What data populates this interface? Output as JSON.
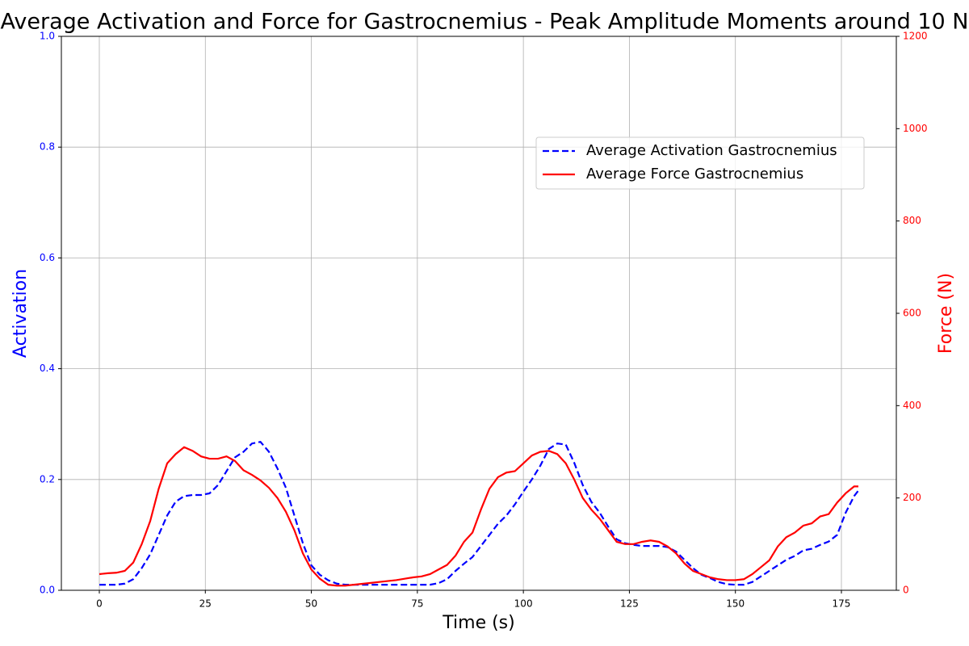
{
  "chart_data": {
    "type": "line",
    "title": "Average Activation and Force for Gastrocnemius - Peak Amplitude Moments around 10 N",
    "xlabel": "Time (s)",
    "ylabel": "Activation",
    "y2label": "Force (N)",
    "ylabel_color": "#0000ff",
    "y2label_color": "#ff0000",
    "x": [
      0,
      2,
      4,
      6,
      8,
      10,
      12,
      14,
      16,
      18,
      20,
      22,
      24,
      26,
      28,
      30,
      32,
      34,
      36,
      38,
      40,
      42,
      44,
      46,
      48,
      50,
      52,
      54,
      56,
      58,
      60,
      62,
      64,
      66,
      68,
      70,
      72,
      74,
      76,
      78,
      80,
      82,
      84,
      86,
      88,
      90,
      92,
      94,
      96,
      98,
      100,
      102,
      104,
      106,
      108,
      110,
      112,
      114,
      116,
      118,
      120,
      122,
      124,
      126,
      128,
      130,
      132,
      134,
      136,
      138,
      140,
      142,
      144,
      146,
      148,
      150,
      152,
      154,
      156,
      158,
      160,
      162,
      164,
      166,
      168,
      170,
      172,
      174,
      176,
      178,
      179
    ],
    "series": [
      {
        "name": "Average Activation Gastrocnemius",
        "color": "#0000ff",
        "linestyle": "dashed",
        "axis": "y",
        "values": [
          0.01,
          0.01,
          0.01,
          0.012,
          0.02,
          0.04,
          0.065,
          0.1,
          0.135,
          0.16,
          0.17,
          0.172,
          0.172,
          0.175,
          0.19,
          0.215,
          0.24,
          0.25,
          0.265,
          0.268,
          0.25,
          0.22,
          0.185,
          0.135,
          0.085,
          0.045,
          0.028,
          0.018,
          0.012,
          0.01,
          0.01,
          0.01,
          0.01,
          0.01,
          0.01,
          0.01,
          0.01,
          0.01,
          0.01,
          0.01,
          0.013,
          0.02,
          0.035,
          0.048,
          0.06,
          0.08,
          0.1,
          0.12,
          0.135,
          0.155,
          0.178,
          0.2,
          0.225,
          0.255,
          0.265,
          0.263,
          0.23,
          0.19,
          0.16,
          0.14,
          0.115,
          0.092,
          0.085,
          0.082,
          0.08,
          0.08,
          0.08,
          0.078,
          0.07,
          0.055,
          0.04,
          0.028,
          0.022,
          0.015,
          0.011,
          0.01,
          0.01,
          0.015,
          0.025,
          0.035,
          0.045,
          0.055,
          0.062,
          0.072,
          0.075,
          0.082,
          0.088,
          0.1,
          0.14,
          0.17,
          0.18
        ]
      },
      {
        "name": "Average Force Gastrocnemius",
        "color": "#ff0000",
        "linestyle": "solid",
        "axis": "y2",
        "values": [
          35,
          37,
          38,
          42,
          60,
          100,
          150,
          220,
          275,
          295,
          310,
          302,
          290,
          285,
          285,
          290,
          280,
          260,
          250,
          238,
          222,
          200,
          170,
          130,
          80,
          45,
          25,
          12,
          10,
          10,
          12,
          14,
          16,
          18,
          20,
          22,
          25,
          28,
          30,
          35,
          45,
          55,
          75,
          105,
          125,
          175,
          220,
          245,
          255,
          258,
          275,
          292,
          300,
          302,
          295,
          275,
          240,
          200,
          175,
          155,
          130,
          105,
          100,
          100,
          105,
          108,
          105,
          95,
          80,
          58,
          42,
          35,
          28,
          24,
          22,
          22,
          24,
          35,
          50,
          65,
          95,
          115,
          125,
          140,
          145,
          160,
          165,
          190,
          210,
          225,
          225
        ]
      }
    ],
    "xlim": [
      -8.95,
      187.95
    ],
    "xticks": [
      0,
      25,
      50,
      75,
      100,
      125,
      150,
      175
    ],
    "ylim": [
      0,
      1
    ],
    "yticks": [
      {
        "value": 0,
        "label": "0.0"
      },
      {
        "value": 0.2,
        "label": "0.2"
      },
      {
        "value": 0.4,
        "label": "0.4"
      },
      {
        "value": 0.6,
        "label": "0.6"
      },
      {
        "value": 0.8,
        "label": "0.8"
      },
      {
        "value": 1,
        "label": "1.0"
      }
    ],
    "y2lim": [
      0,
      1200
    ],
    "y2ticks": [
      0,
      200,
      400,
      600,
      800,
      1000,
      1200
    ],
    "grid": true,
    "legend": "upper right"
  }
}
